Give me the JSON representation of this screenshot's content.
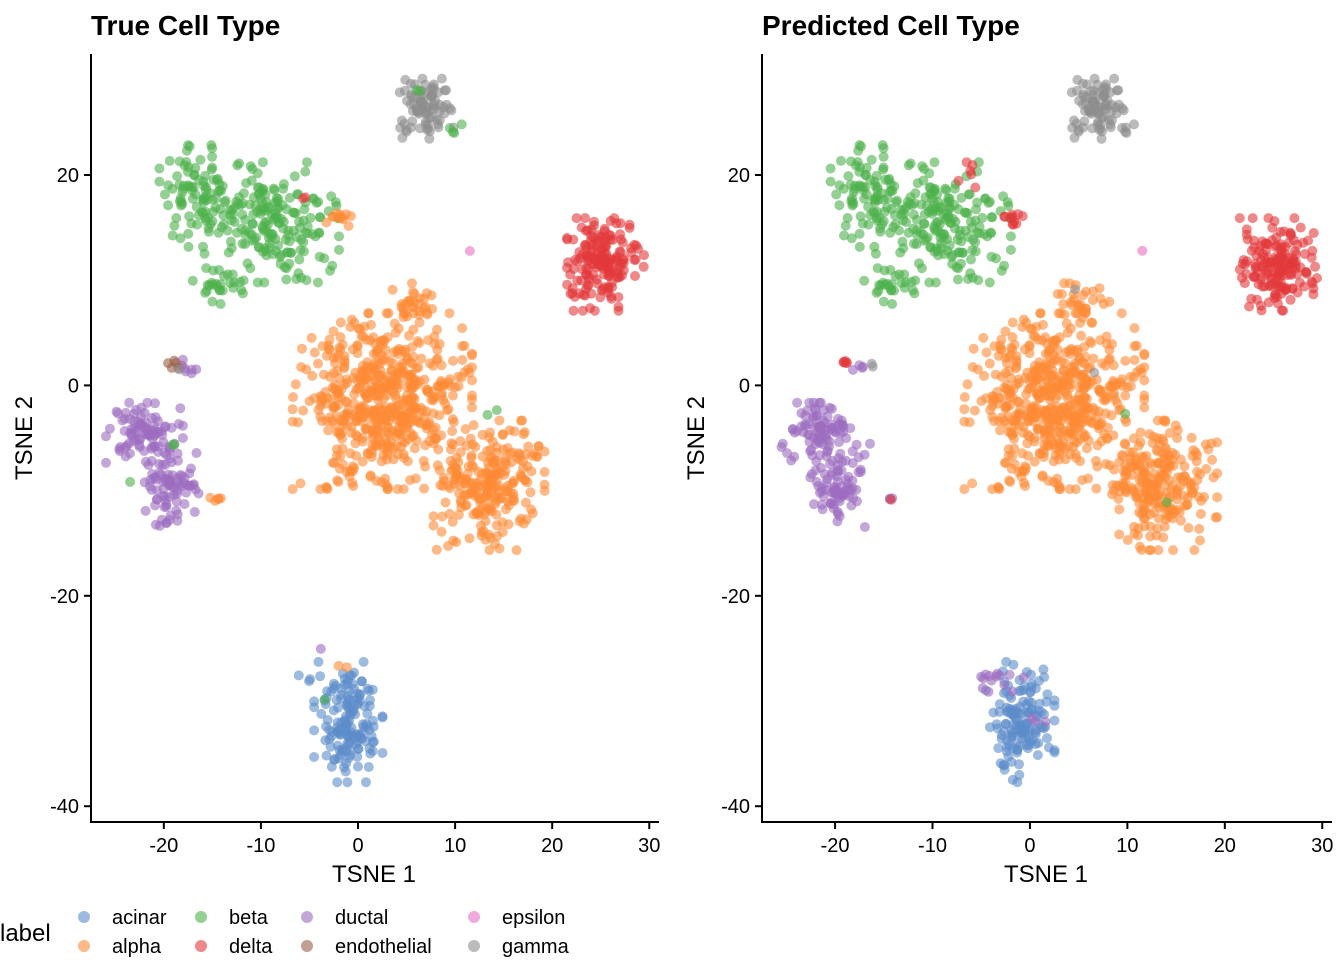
{
  "legend": {
    "title": "label",
    "items": [
      {
        "name": "acinar",
        "color": "#5b8cc9"
      },
      {
        "name": "alpha",
        "color": "#fd8b35"
      },
      {
        "name": "beta",
        "color": "#4db14b"
      },
      {
        "name": "delta",
        "color": "#e3393a"
      },
      {
        "name": "ductal",
        "color": "#9c6dc0"
      },
      {
        "name": "endothelial",
        "color": "#9a5f47"
      },
      {
        "name": "epsilon",
        "color": "#ea72c7"
      },
      {
        "name": "gamma",
        "color": "#8e8e8e"
      }
    ]
  },
  "chart_data": [
    {
      "type": "scatter",
      "title": "True Cell Type",
      "xlabel": "TSNE 1",
      "ylabel": "TSNE 2",
      "xlim": [
        -27.5,
        31
      ],
      "ylim": [
        -41.5,
        31.5
      ],
      "xticks": [
        -20,
        -10,
        0,
        10,
        20,
        30
      ],
      "yticks": [
        -40,
        -20,
        0,
        20
      ],
      "grid": false,
      "legend_position": "bottom",
      "point_alpha": 0.6,
      "clusters": [
        {
          "label": "beta",
          "cx": -16.5,
          "cy": 18,
          "sx": 1.8,
          "sy": 2.2,
          "n": 90
        },
        {
          "label": "beta",
          "cx": -9,
          "cy": 15.5,
          "sx": 3.2,
          "sy": 2.6,
          "n": 190
        },
        {
          "label": "beta",
          "cx": -14.5,
          "cy": 9.5,
          "sx": 1.2,
          "sy": 0.8,
          "n": 25
        },
        {
          "label": "alpha",
          "cx": -2.5,
          "cy": 16.3,
          "sx": 0.8,
          "sy": 0.3,
          "n": 7
        },
        {
          "label": "alpha",
          "cx": -1.5,
          "cy": 15.5,
          "sx": 0.8,
          "sy": 0.5,
          "n": 5
        },
        {
          "label": "delta",
          "cx": -5.5,
          "cy": 18,
          "sx": 0.4,
          "sy": 0.4,
          "n": 2
        },
        {
          "label": "gamma",
          "cx": 7,
          "cy": 26.3,
          "sx": 1.3,
          "sy": 1.3,
          "n": 85
        },
        {
          "label": "beta",
          "cx": 9.8,
          "cy": 24.5,
          "sx": 0.4,
          "sy": 0.3,
          "n": 4
        },
        {
          "label": "beta",
          "cx": 6.2,
          "cy": 28,
          "sx": 0.3,
          "sy": 0.2,
          "n": 2
        },
        {
          "label": "epsilon",
          "cx": 11.5,
          "cy": 12.8,
          "sx": 0.05,
          "sy": 0.05,
          "n": 1
        },
        {
          "label": "delta",
          "cx": 25.5,
          "cy": 11.5,
          "sx": 1.8,
          "sy": 2.0,
          "n": 170
        },
        {
          "label": "alpha",
          "cx": 5.5,
          "cy": 7.5,
          "sx": 1.2,
          "sy": 1.0,
          "n": 30
        },
        {
          "label": "alpha",
          "cx": 2.5,
          "cy": -1.5,
          "sx": 4.2,
          "sy": 3.8,
          "n": 560
        },
        {
          "label": "alpha",
          "cx": 13.5,
          "cy": -9.5,
          "sx": 2.6,
          "sy": 2.8,
          "n": 240
        },
        {
          "label": "beta",
          "cx": 14,
          "cy": -2.2,
          "sx": 0.3,
          "sy": 0.3,
          "n": 2
        },
        {
          "label": "endothelial",
          "cx": -19,
          "cy": 2.1,
          "sx": 0.4,
          "sy": 0.2,
          "n": 6
        },
        {
          "label": "ductal",
          "cx": -17.5,
          "cy": 1.8,
          "sx": 0.8,
          "sy": 0.3,
          "n": 6
        },
        {
          "label": "gamma",
          "cx": -18.5,
          "cy": 1.3,
          "sx": 0.2,
          "sy": 0.2,
          "n": 1
        },
        {
          "label": "ductal",
          "cx": -22,
          "cy": -4.5,
          "sx": 1.8,
          "sy": 1.3,
          "n": 85
        },
        {
          "label": "ductal",
          "cx": -19.5,
          "cy": -9.5,
          "sx": 1.4,
          "sy": 1.8,
          "n": 85
        },
        {
          "label": "beta",
          "cx": -23.5,
          "cy": -9.2,
          "sx": 0.1,
          "sy": 0.1,
          "n": 1
        },
        {
          "label": "beta",
          "cx": -19,
          "cy": -5.5,
          "sx": 0.3,
          "sy": 0.3,
          "n": 2
        },
        {
          "label": "alpha",
          "cx": -14.5,
          "cy": -10.8,
          "sx": 0.4,
          "sy": 0.1,
          "n": 5
        },
        {
          "label": "acinar",
          "cx": -1,
          "cy": -32,
          "sx": 1.6,
          "sy": 2.6,
          "n": 150
        },
        {
          "label": "acinar",
          "cx": -5,
          "cy": -27.8,
          "sx": 0.5,
          "sy": 0.2,
          "n": 4
        },
        {
          "label": "ductal",
          "cx": -3.8,
          "cy": -25,
          "sx": 0.1,
          "sy": 0.1,
          "n": 1
        },
        {
          "label": "alpha",
          "cx": -1.8,
          "cy": -26.6,
          "sx": 0.3,
          "sy": 0.2,
          "n": 2
        },
        {
          "label": "beta",
          "cx": -3.5,
          "cy": -29.8,
          "sx": 0.2,
          "sy": 0.2,
          "n": 1
        }
      ]
    },
    {
      "type": "scatter",
      "title": "Predicted Cell Type",
      "xlabel": "TSNE 1",
      "ylabel": "TSNE 2",
      "xlim": [
        -27.5,
        31
      ],
      "ylim": [
        -41.5,
        31.5
      ],
      "xticks": [
        -20,
        -10,
        0,
        10,
        20,
        30
      ],
      "yticks": [
        -40,
        -20,
        0,
        20
      ],
      "grid": false,
      "legend_position": "bottom",
      "point_alpha": 0.6,
      "clusters": [
        {
          "label": "beta",
          "cx": -16.5,
          "cy": 18,
          "sx": 1.8,
          "sy": 2.2,
          "n": 90
        },
        {
          "label": "beta",
          "cx": -9,
          "cy": 15.5,
          "sx": 3.2,
          "sy": 2.6,
          "n": 190
        },
        {
          "label": "beta",
          "cx": -14.5,
          "cy": 9.5,
          "sx": 1.2,
          "sy": 0.8,
          "n": 25
        },
        {
          "label": "delta",
          "cx": -2.5,
          "cy": 16.3,
          "sx": 0.8,
          "sy": 0.3,
          "n": 7
        },
        {
          "label": "delta",
          "cx": -6,
          "cy": 19.5,
          "sx": 0.6,
          "sy": 1.0,
          "n": 6
        },
        {
          "label": "delta",
          "cx": -1.5,
          "cy": 15.5,
          "sx": 0.6,
          "sy": 0.4,
          "n": 4
        },
        {
          "label": "gamma",
          "cx": 7,
          "cy": 26.3,
          "sx": 1.3,
          "sy": 1.3,
          "n": 85
        },
        {
          "label": "gamma",
          "cx": 9.8,
          "cy": 24.5,
          "sx": 0.4,
          "sy": 0.3,
          "n": 4
        },
        {
          "label": "epsilon",
          "cx": 11.5,
          "cy": 12.8,
          "sx": 0.05,
          "sy": 0.05,
          "n": 1
        },
        {
          "label": "delta",
          "cx": 25.5,
          "cy": 11.5,
          "sx": 1.8,
          "sy": 2.0,
          "n": 170
        },
        {
          "label": "alpha",
          "cx": 5.5,
          "cy": 7.5,
          "sx": 1.2,
          "sy": 1.0,
          "n": 30
        },
        {
          "label": "gamma",
          "cx": 4.5,
          "cy": 9,
          "sx": 0.1,
          "sy": 0.1,
          "n": 1
        },
        {
          "label": "alpha",
          "cx": 2.5,
          "cy": -1.5,
          "sx": 4.2,
          "sy": 3.8,
          "n": 560
        },
        {
          "label": "gamma",
          "cx": 6.5,
          "cy": 1.2,
          "sx": 0.1,
          "sy": 0.1,
          "n": 1
        },
        {
          "label": "beta",
          "cx": 10,
          "cy": -2.5,
          "sx": 0.1,
          "sy": 0.1,
          "n": 1
        },
        {
          "label": "alpha",
          "cx": 13.5,
          "cy": -9.5,
          "sx": 2.6,
          "sy": 2.8,
          "n": 240
        },
        {
          "label": "beta",
          "cx": 14,
          "cy": -11,
          "sx": 0.1,
          "sy": 0.1,
          "n": 1
        },
        {
          "label": "delta",
          "cx": -19,
          "cy": 2.1,
          "sx": 0.4,
          "sy": 0.2,
          "n": 5
        },
        {
          "label": "ductal",
          "cx": -17.5,
          "cy": 1.8,
          "sx": 0.6,
          "sy": 0.3,
          "n": 4
        },
        {
          "label": "gamma",
          "cx": -16,
          "cy": 2,
          "sx": 0.2,
          "sy": 0.1,
          "n": 2
        },
        {
          "label": "ductal",
          "cx": -22,
          "cy": -4.5,
          "sx": 1.8,
          "sy": 1.3,
          "n": 85
        },
        {
          "label": "ductal",
          "cx": -19.5,
          "cy": -9.5,
          "sx": 1.4,
          "sy": 1.8,
          "n": 85
        },
        {
          "label": "ductal",
          "cx": -14.5,
          "cy": -10.8,
          "sx": 0.4,
          "sy": 0.1,
          "n": 3
        },
        {
          "label": "delta",
          "cx": -14.3,
          "cy": -10.8,
          "sx": 0.1,
          "sy": 0.1,
          "n": 1
        },
        {
          "label": "acinar",
          "cx": -1,
          "cy": -32,
          "sx": 1.6,
          "sy": 2.6,
          "n": 140
        },
        {
          "label": "ductal",
          "cx": -3.5,
          "cy": -27.8,
          "sx": 1.3,
          "sy": 0.6,
          "n": 14
        },
        {
          "label": "ductal",
          "cx": 0.5,
          "cy": -31.5,
          "sx": 0.5,
          "sy": 0.5,
          "n": 3
        }
      ]
    }
  ]
}
